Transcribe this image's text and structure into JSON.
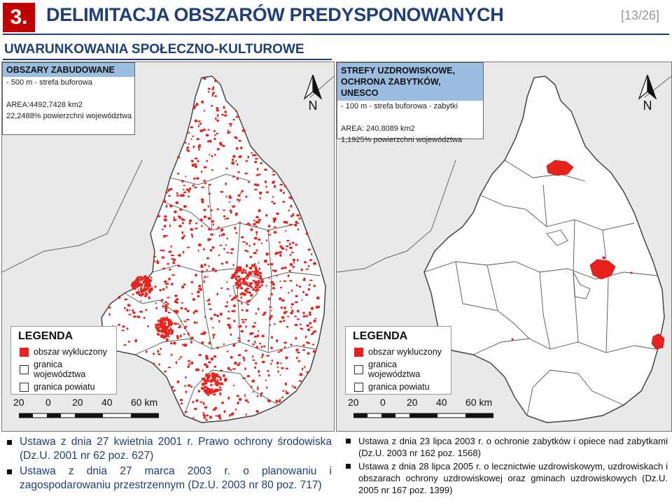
{
  "header": {
    "section_number": "3.",
    "title": "DELIMITACJA OBSZARÓW PREDYSPONOWANYCH",
    "page_indicator": "[13/26]",
    "subtitle": "UWARUNKOWANIA SPOŁECZNO-KULTUROWE"
  },
  "colors": {
    "accent": "#1f3f7a",
    "badge": "#c00000",
    "excluded": "#e8221c",
    "region_fill": "#ffffff",
    "outside_fill": "#e9e9e9",
    "info_header": "#9bbde0"
  },
  "maps": [
    {
      "heading_lines": [
        "OBSZARY ZABUDOWANE"
      ],
      "buffer_line": "- 500 m - strefa buforowa",
      "area_line": "AREA:4492,7428 km2",
      "percent_line": "22,2488% powierzchni województwa",
      "north_label": "N",
      "legend": {
        "title": "LEGENDA",
        "items": [
          "obszar wykluczony",
          "granica województwa",
          "granica powiatu"
        ]
      },
      "scale": {
        "ticks": [
          "20",
          "0",
          "20",
          "40",
          "60 km"
        ]
      }
    },
    {
      "heading_lines": [
        "STREFY UZDROWISKOWE,",
        "OCHRONA ZABYTKÓW, UNESCO"
      ],
      "buffer_line": "- 100 m - strefa buforowa - zabytki",
      "area_line": "AREA: 240,8089 km2",
      "percent_line": "1,1925% powierzchni województwa",
      "north_label": "N",
      "legend": {
        "title": "LEGENDA",
        "items": [
          "obszar wykluczony",
          "granica województwa",
          "granica powiatu"
        ]
      },
      "scale": {
        "ticks": [
          "20",
          "0",
          "20",
          "40",
          "60 km"
        ]
      }
    }
  ],
  "notes": {
    "left": [
      "Ustawa z dnia 27 kwietnia 2001 r. Prawo ochrony środowiska (Dz.U. 2001 nr 62 poz. 627)",
      "Ustawa z dnia 27 marca 2003 r. o planowaniu i zagospodarowaniu przestrzennym (Dz.U. 2003 nr 80 poz. 717)"
    ],
    "right": [
      "Ustawa z dnia 23 lipca 2003 r. o ochronie zabytków i opiece nad zabytkami (Dz.U. 2003 nr 162 poz. 1568)",
      "Ustawa z dnia 28 lipca 2005 r. o lecznictwie uzdrowiskowym, uzdrowiskach i obszarach ochrony uzdrowiskowej oraz gminach uzdrowiskowych (Dz.U. 2005 nr 167 poz. 1399)"
    ]
  }
}
